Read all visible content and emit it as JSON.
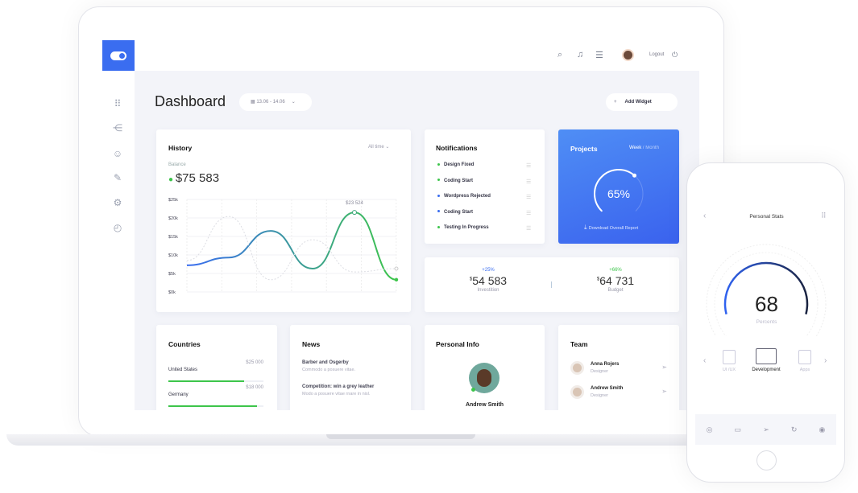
{
  "app": {
    "logout": "Logout",
    "colors": {
      "accent": "#3a6df0",
      "green": "#3dc54b"
    }
  },
  "header": {
    "icons": [
      "search-icon",
      "bell-icon",
      "sliders-icon",
      "avatar",
      "power-icon"
    ]
  },
  "sidebar": {
    "icons": [
      "grid-icon",
      "share-icon",
      "user-check-icon",
      "pencil-icon",
      "gear-icon",
      "history-icon"
    ]
  },
  "page": {
    "title": "Dashboard",
    "date_range": "13.06 - 14.06",
    "add_widget": "Add Widget"
  },
  "history": {
    "title": "History",
    "filter": "All time",
    "balance_label": "Balance",
    "balance": "$75 583",
    "tooltip": "$23 524"
  },
  "chart_data": {
    "type": "line",
    "ylim": [
      0,
      25
    ],
    "yticks": [
      "$0k",
      "$5k",
      "$10k",
      "$15k",
      "$20k",
      "$25k"
    ],
    "grid": true,
    "series": [
      {
        "values": [
          7.2,
          9.3,
          16.5,
          6.3,
          21.5,
          3.3
        ],
        "x": [
          0,
          1,
          2,
          3,
          4,
          5
        ]
      },
      {
        "style": "dashed",
        "values": [
          8.5,
          20.4,
          3.3,
          14.1,
          5.4,
          6.3
        ],
        "x": [
          0,
          1,
          2,
          3,
          4,
          5
        ]
      }
    ]
  },
  "notifications": {
    "title": "Notifications",
    "items": [
      {
        "label": "Design Fixed",
        "color": "#3dc54b"
      },
      {
        "label": "Coding Start",
        "color": "#3dc54b"
      },
      {
        "label": "Wordpress Rejected",
        "color": "#3a6df0"
      },
      {
        "label": "Coding Start",
        "color": "#3a6df0"
      },
      {
        "label": "Testing In Progress",
        "color": "#3dc54b"
      }
    ]
  },
  "projects": {
    "title": "Projects",
    "week": "Week",
    "sep": "/",
    "month": "Month",
    "percent": "65%",
    "progress": 0.65,
    "download": "Download Overall Report"
  },
  "stats": [
    {
      "change": "+25%",
      "currency": "$",
      "value": "54 583",
      "label": "Investition",
      "color": "#3a6df0"
    },
    {
      "change": "+66%",
      "currency": "$",
      "value": "64 731",
      "label": "Budget",
      "color": "#3dc54b"
    }
  ],
  "countries": {
    "title": "Countries",
    "items": [
      {
        "name": "United States",
        "value": "$25 000",
        "fill": 0.8
      },
      {
        "name": "Germany",
        "value": "$18 000",
        "fill": 0.93
      }
    ]
  },
  "news": {
    "title": "News",
    "items": [
      {
        "title": "Barber and Osgerby",
        "text": "Commodo a posuere vitae."
      },
      {
        "title": "Competition: win a grey leather",
        "text": "Modo a posuere vitae rnare in nisl."
      }
    ]
  },
  "personal": {
    "title": "Personal Info",
    "name": "Andrew Smith"
  },
  "team": {
    "title": "Team",
    "members": [
      {
        "name": "Anna Rojers",
        "role": "Designer"
      },
      {
        "name": "Andrew Smith",
        "role": "Designer"
      }
    ]
  },
  "phone": {
    "title": "Personal Stats",
    "value": "68",
    "unit": "Percents",
    "progress": 0.68,
    "categories": [
      "UI /UX",
      "Development",
      "Apps"
    ],
    "nav_icons": [
      "palette-icon",
      "calendar-icon",
      "send-icon",
      "refresh-icon",
      "globe-icon"
    ]
  }
}
